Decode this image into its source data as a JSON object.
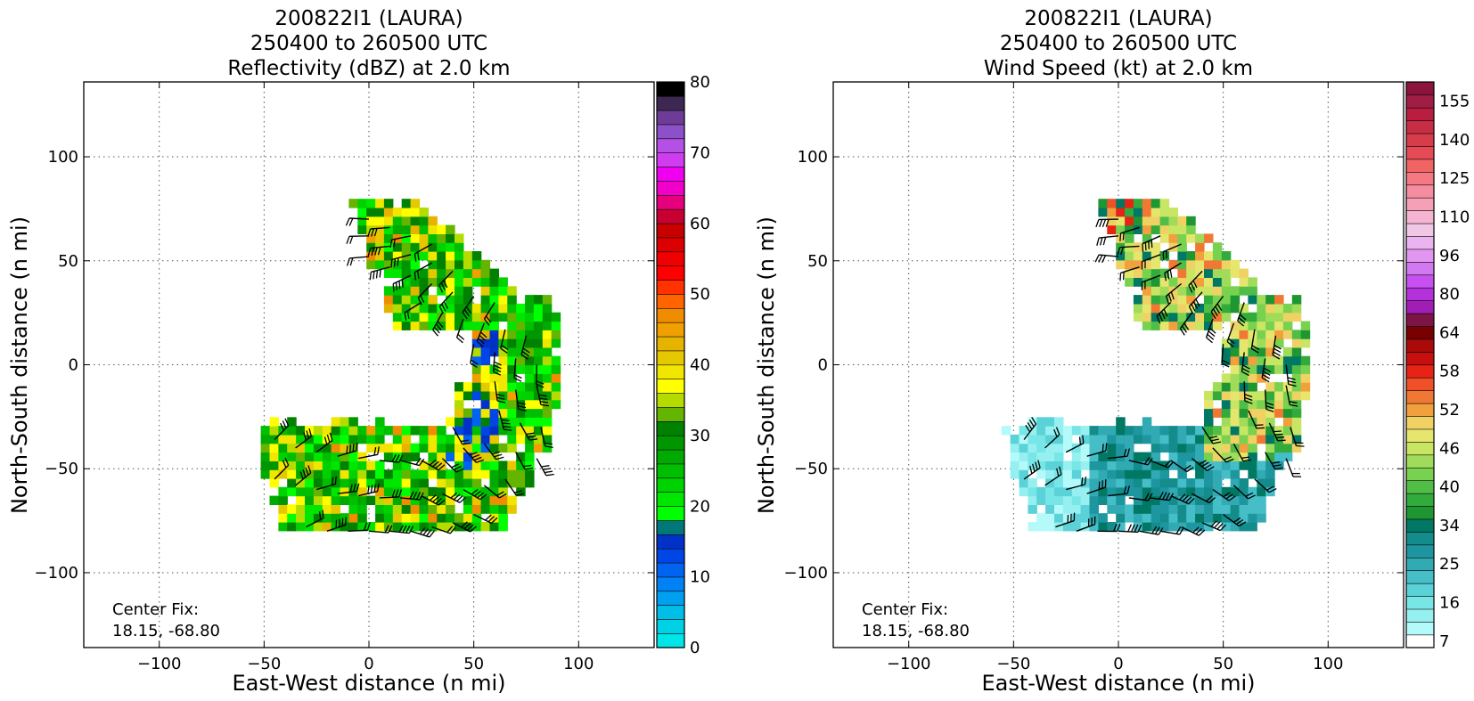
{
  "chart_data": [
    {
      "type": "heatmap",
      "title": [
        "200822I1 (LAURA)",
        "250400 to 260500 UTC",
        "Reflectivity (dBZ) at 2.0 km"
      ],
      "xlabel": "East-West distance (n mi)",
      "ylabel": "North-South distance (n mi)",
      "xlim": [
        -136,
        136
      ],
      "ylim": [
        -136,
        136
      ],
      "xticks": [
        -100,
        -50,
        0,
        50,
        100
      ],
      "yticks": [
        -100,
        -50,
        0,
        50,
        100
      ],
      "xtick_labels": [
        "−100",
        "−50",
        "0",
        "50",
        "100"
      ],
      "ytick_labels": [
        "−100",
        "−50",
        "0",
        "50",
        "100"
      ],
      "grid": true,
      "annotation": [
        "Center Fix:",
        "18.15, -68.80"
      ],
      "colorbar": {
        "min": 0,
        "max": 80,
        "ticks": [
          0,
          10,
          20,
          30,
          40,
          50,
          60,
          70,
          80
        ],
        "colors": [
          "#00e6e6",
          "#00d2e6",
          "#00bee6",
          "#00a0f0",
          "#0082f5",
          "#0064f0",
          "#0046e6",
          "#0032c8",
          "#007878",
          "#00ff00",
          "#00e600",
          "#00d200",
          "#00be00",
          "#00aa00",
          "#009600",
          "#008200",
          "#64b400",
          "#b4dc00",
          "#ffff00",
          "#f0e600",
          "#e6c800",
          "#e6b400",
          "#f0a000",
          "#f08c00",
          "#ff6400",
          "#ff3200",
          "#ff0000",
          "#f00000",
          "#dc0000",
          "#c80000",
          "#c80032",
          "#e6007d",
          "#f000c8",
          "#f000f0",
          "#d23cf0",
          "#b450e6",
          "#8c50c8",
          "#6e3c96",
          "#3c2850",
          "#000000"
        ]
      },
      "field_description": "reflectivity",
      "wind_barbs": true
    },
    {
      "type": "heatmap",
      "title": [
        "200822I1 (LAURA)",
        "250400 to 260500 UTC",
        "Wind Speed (kt) at 2.0 km"
      ],
      "xlabel": "East-West distance (n mi)",
      "ylabel": "North-South distance (n mi)",
      "xlim": [
        -136,
        136
      ],
      "ylim": [
        -136,
        136
      ],
      "xticks": [
        -100,
        -50,
        0,
        50,
        100
      ],
      "yticks": [
        -100,
        -50,
        0,
        50,
        100
      ],
      "xtick_labels": [
        "−100",
        "−50",
        "0",
        "50",
        "100"
      ],
      "ytick_labels": [
        "−100",
        "−50",
        "0",
        "50",
        "100"
      ],
      "grid": true,
      "annotation": [
        "Center Fix:",
        "18.15, -68.80"
      ],
      "colorbar": {
        "tick_labels": [
          "7",
          "16",
          "25",
          "34",
          "40",
          "46",
          "52",
          "58",
          "64",
          "80",
          "96",
          "110",
          "125",
          "140",
          "155"
        ],
        "colors": [
          "#ffffff",
          "#b4fafa",
          "#96f0f0",
          "#78e6e6",
          "#5ad2d7",
          "#46bec8",
          "#32aab4",
          "#1e96a0",
          "#148c8c",
          "#007864",
          "#1e9632",
          "#32aa3c",
          "#50be46",
          "#78d250",
          "#a0dc5a",
          "#c8e664",
          "#e6e66e",
          "#f0d264",
          "#f0a03c",
          "#f07832",
          "#f05028",
          "#e62314",
          "#c80f0f",
          "#aa0a0a",
          "#780000",
          "#7d1446",
          "#a01eb4",
          "#b432dc",
          "#c850f0",
          "#d278f0",
          "#e196f0",
          "#ebb4f0",
          "#f0c8e6",
          "#f5b4d2",
          "#f5a0b4",
          "#f58ca0",
          "#f57882",
          "#f06464",
          "#e64b55",
          "#d73c4b",
          "#c82d46",
          "#b91e41",
          "#a01e46",
          "#8c143c"
        ]
      },
      "field_description": "wind speed",
      "wind_barbs": true
    }
  ]
}
